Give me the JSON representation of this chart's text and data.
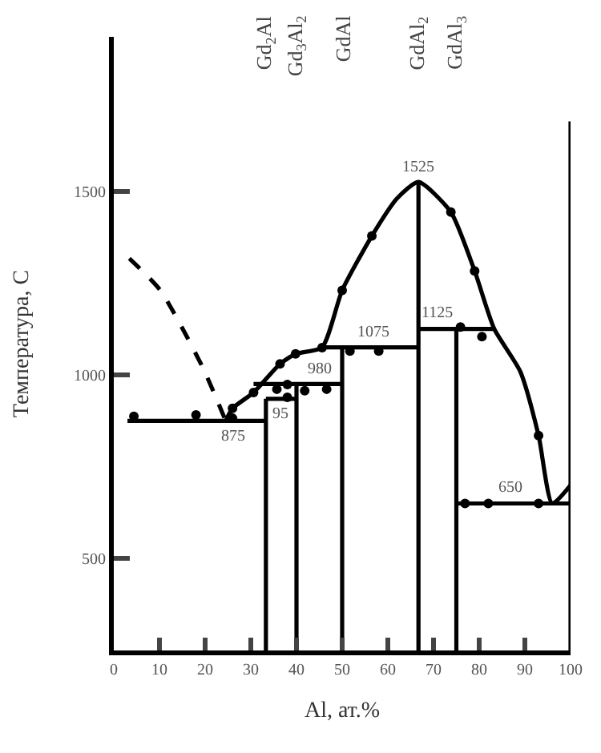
{
  "chart_data": {
    "type": "line",
    "xlabel": "Al, ат.%",
    "ylabel": "Температура, С",
    "xlim": [
      0,
      100
    ],
    "xticks": [
      0,
      10,
      20,
      30,
      40,
      50,
      60,
      70,
      80,
      90,
      100
    ],
    "ylim": [
      250,
      1920
    ],
    "yticks": [
      500,
      1000,
      1500
    ],
    "series": [
      {
        "color": "#000000",
        "line_style": "dashed",
        "marker": "none",
        "x": [
          3.4,
          10.2,
          19.4,
          24.5
        ],
        "values": [
          1317,
          1230,
          1022,
          875
        ]
      },
      {
        "color": "#000000",
        "line_style": "solid",
        "marker": "none",
        "x": [
          24.5,
          26,
          30.6,
          36.4,
          39.8,
          45.6,
          50,
          56.5,
          62,
          66.7,
          73.8,
          79,
          83.3,
          89,
          93,
          96,
          100
        ],
        "values": [
          875,
          909,
          952,
          1030,
          1057,
          1075,
          1230,
          1378,
          1480,
          1525,
          1443,
          1283,
          1125,
          1009,
          835,
          650,
          700
        ]
      },
      {
        "color": "#000000",
        "line_style": "solid",
        "marker": "none",
        "x": [
          3,
          33.3
        ],
        "values": [
          875,
          875
        ]
      },
      {
        "color": "#000000",
        "line_style": "solid",
        "marker": "none",
        "x": [
          33.3,
          40
        ],
        "values": [
          935,
          935
        ]
      },
      {
        "color": "#000000",
        "line_style": "solid",
        "marker": "none",
        "x": [
          30.6,
          50
        ],
        "values": [
          975,
          975
        ]
      },
      {
        "color": "#000000",
        "line_style": "solid",
        "marker": "none",
        "x": [
          45.6,
          66.7
        ],
        "values": [
          1075,
          1075
        ]
      },
      {
        "color": "#000000",
        "line_style": "solid",
        "marker": "none",
        "x": [
          66.7,
          83.3
        ],
        "values": [
          1125,
          1125
        ]
      },
      {
        "color": "#000000",
        "line_style": "solid",
        "marker": "none",
        "x": [
          75,
          100
        ],
        "values": [
          650,
          650
        ]
      },
      {
        "color": "#000000",
        "line_style": "solid",
        "marker": "none",
        "x": [
          33.3,
          33.3
        ],
        "values": [
          250,
          935
        ]
      },
      {
        "color": "#000000",
        "line_style": "solid",
        "marker": "none",
        "x": [
          40,
          40
        ],
        "values": [
          250,
          975
        ]
      },
      {
        "color": "#000000",
        "line_style": "solid",
        "marker": "none",
        "x": [
          50,
          50
        ],
        "values": [
          250,
          1075
        ]
      },
      {
        "color": "#000000",
        "line_style": "solid",
        "marker": "none",
        "x": [
          66.7,
          66.7
        ],
        "values": [
          250,
          1525
        ]
      },
      {
        "color": "#000000",
        "line_style": "solid",
        "marker": "none",
        "x": [
          75,
          75
        ],
        "values": [
          250,
          1125
        ]
      },
      {
        "color": "#000000",
        "line_style": "solid",
        "marker": "none",
        "x": [
          100,
          100
        ],
        "values": [
          250,
          1690
        ]
      },
      {
        "type": "scatter",
        "color": "#000000",
        "marker": "circle",
        "x": [
          4.4,
          18,
          26,
          26,
          30.6,
          35.7,
          38,
          38,
          36.4,
          39.8,
          41.8,
          46.6,
          45.6,
          50,
          51.7,
          58,
          56.5,
          73.8,
          79,
          75.9,
          80.6,
          93,
          76.9,
          82,
          93
        ],
        "values": [
          887,
          891,
          882,
          909,
          952,
          961,
          974,
          939,
          1030,
          1057,
          957,
          961,
          1074,
          1230,
          1065,
          1065,
          1378,
          1443,
          1283,
          1130,
          1104,
          835,
          650,
          650,
          650
        ]
      }
    ],
    "annotations": [
      "Gd$_{2}$Al",
      "Gd$_{3}$Al$_{2}$",
      "GdAl",
      "GdAl$_{2}$",
      "GdAl$_{3}$",
      {
        "text": "875",
        "x": 26,
        "y": 875
      },
      {
        "text": "95",
        "x": 36.6,
        "y": 935
      },
      {
        "text": "980",
        "x": 45,
        "y": 975
      },
      {
        "text": "1075",
        "x": 57,
        "y": 1075
      },
      {
        "text": "1125",
        "x": 71,
        "y": 1125
      },
      {
        "text": "1525",
        "x": 66.7,
        "y": 1525
      },
      {
        "text": "650",
        "x": 87,
        "y": 650
      }
    ]
  }
}
